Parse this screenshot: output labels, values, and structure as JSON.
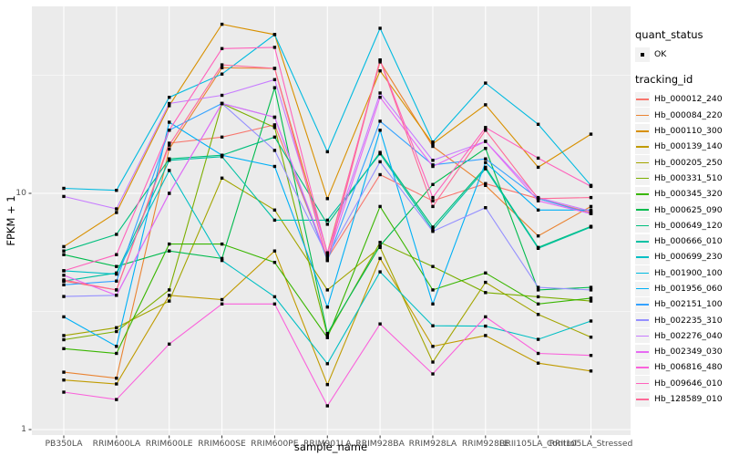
{
  "figure": {
    "panel_background": "#EBEBEB",
    "gridline_color": "#FFFFFF",
    "tick_color": "#333333",
    "tick_label_color": "#4D4D4D",
    "point_color": "#000000",
    "legend_key_fill": "#F2F2F2"
  },
  "legend": {
    "quant_status": {
      "title": "quant_status",
      "items": [
        {
          "label": "OK",
          "marker": "black-point"
        }
      ]
    },
    "tracking_id": {
      "title": "tracking_id"
    }
  },
  "chart_data": {
    "type": "line",
    "title": "",
    "xlabel": "sample_name",
    "ylabel": "FPKM + 1",
    "yscale": "log10",
    "ylim": [
      1,
      62
    ],
    "yticks": [
      1,
      10
    ],
    "yticks_minor": [
      3.162,
      31.62
    ],
    "grid": true,
    "legend_position": "right",
    "point_marker": "black-square",
    "categories": [
      "PB350LA",
      "RRIM600LA",
      "RRIM600LE",
      "RRIM600SE",
      "RRIM600PE",
      "RRIM901LA",
      "RRIM928BA",
      "RRIM928LA",
      "RRIM928LE",
      "RRII105LA_Control",
      "RRII105LA_Stressed"
    ],
    "series": [
      {
        "name": "Hb_000012_240",
        "color": "#F8766D",
        "values": [
          4.25,
          3.9,
          16.3,
          17.3,
          19.5,
          5.3,
          12.0,
          9.3,
          11.0,
          9.5,
          8.3
        ]
      },
      {
        "name": "Hb_000084_220",
        "color": "#EA8331",
        "values": [
          1.75,
          1.65,
          15.4,
          34.0,
          33.8,
          5.6,
          36.0,
          15.8,
          10.8,
          6.6,
          8.8
        ]
      },
      {
        "name": "Hb_000110_300",
        "color": "#D89000",
        "values": [
          5.95,
          8.3,
          23.5,
          52.0,
          47.0,
          9.5,
          33.0,
          16.2,
          23.7,
          12.9,
          17.8
        ]
      },
      {
        "name": "Hb_000139_140",
        "color": "#C09B00",
        "values": [
          1.62,
          1.56,
          3.7,
          3.55,
          5.7,
          1.55,
          5.3,
          2.25,
          2.5,
          1.91,
          1.77
        ]
      },
      {
        "name": "Hb_000205_250",
        "color": "#A3A500",
        "values": [
          2.5,
          2.7,
          3.5,
          11.6,
          8.5,
          3.9,
          5.9,
          1.93,
          4.2,
          3.07,
          2.46
        ]
      },
      {
        "name": "Hb_000331_510",
        "color": "#7CAE00",
        "values": [
          2.4,
          2.6,
          3.9,
          24.0,
          19.0,
          2.5,
          6.2,
          4.9,
          3.8,
          3.65,
          3.5
        ]
      },
      {
        "name": "Hb_000345_320",
        "color": "#39B600",
        "values": [
          2.2,
          2.1,
          6.1,
          6.1,
          5.1,
          2.45,
          8.8,
          3.9,
          4.6,
          3.4,
          3.6
        ]
      },
      {
        "name": "Hb_000625_090",
        "color": "#00BB4E",
        "values": [
          5.5,
          4.9,
          5.7,
          5.3,
          28.0,
          2.55,
          6.0,
          10.9,
          15.5,
          3.9,
          4.0
        ]
      },
      {
        "name": "Hb_000649_120",
        "color": "#00BF7D",
        "values": [
          5.7,
          6.7,
          14.0,
          14.5,
          17.3,
          7.4,
          14.9,
          7.2,
          12.9,
          5.9,
          7.25
        ]
      },
      {
        "name": "Hb_000666_010",
        "color": "#00C1A3",
        "values": [
          4.25,
          4.6,
          13.8,
          14.3,
          7.7,
          7.7,
          14.7,
          7.0,
          12.7,
          5.85,
          7.2
        ]
      },
      {
        "name": "Hb_000699_230",
        "color": "#00BFC4",
        "values": [
          4.7,
          4.55,
          12.5,
          5.2,
          3.65,
          1.9,
          4.65,
          2.75,
          2.74,
          2.41,
          2.88
        ]
      },
      {
        "name": "Hb_001900_100",
        "color": "#00BAE0",
        "values": [
          10.5,
          10.3,
          25.5,
          32.0,
          47.0,
          15.0,
          50.0,
          16.5,
          29.3,
          19.6,
          10.8
        ]
      },
      {
        "name": "Hb_001956_060",
        "color": "#00B0F6",
        "values": [
          3.0,
          2.25,
          20.0,
          14.5,
          13.0,
          3.3,
          18.5,
          3.4,
          13.5,
          8.5,
          8.5
        ]
      },
      {
        "name": "Hb_002151_100",
        "color": "#35A2FF",
        "values": [
          4.1,
          4.25,
          18.5,
          24.0,
          21.0,
          5.2,
          20.2,
          13.2,
          14.0,
          9.5,
          8.2
        ]
      },
      {
        "name": "Hb_002235_310",
        "color": "#9590FF",
        "values": [
          3.66,
          3.7,
          10.0,
          24.0,
          15.2,
          5.4,
          13.6,
          6.9,
          8.7,
          4.0,
          3.9
        ]
      },
      {
        "name": "Hb_002276_040",
        "color": "#C77CFF",
        "values": [
          9.7,
          8.6,
          24.0,
          26.0,
          30.3,
          5.6,
          26.6,
          13.8,
          16.6,
          9.6,
          8.4
        ]
      },
      {
        "name": "Hb_002349_030",
        "color": "#E76BF3",
        "values": [
          4.5,
          3.7,
          10.0,
          24.0,
          21.0,
          5.3,
          25.5,
          13.0,
          16.6,
          9.3,
          8.2
        ]
      },
      {
        "name": "Hb_006816_480",
        "color": "#FA62DB",
        "values": [
          1.44,
          1.34,
          2.3,
          3.4,
          3.4,
          1.26,
          2.8,
          1.72,
          3.0,
          2.1,
          2.06
        ]
      },
      {
        "name": "Hb_009646_010",
        "color": "#FF62BC",
        "values": [
          4.7,
          5.5,
          18.5,
          41.0,
          41.5,
          5.5,
          36.7,
          9.6,
          19.0,
          14.1,
          10.7
        ]
      },
      {
        "name": "Hb_128589_010",
        "color": "#FF6A98",
        "values": [
          4.3,
          3.9,
          16.0,
          35.0,
          33.8,
          5.2,
          36.7,
          8.8,
          18.5,
          9.5,
          9.6
        ]
      }
    ]
  }
}
